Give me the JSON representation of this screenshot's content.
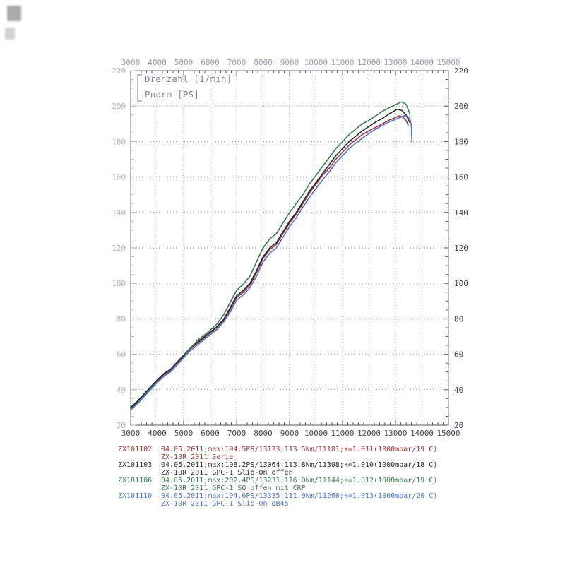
{
  "plot": {
    "inner_label_line1": "Drehzahl [1/min]",
    "inner_label_line2": "Pnorm [PS]"
  },
  "chart_data": {
    "type": "line",
    "title": "",
    "xlabel": "Drehzahl [1/min]",
    "ylabel": "Pnorm [PS]",
    "xlim": [
      3000,
      15000
    ],
    "ylim": [
      20,
      220
    ],
    "x_ticks": [
      3000,
      4000,
      5000,
      6000,
      7000,
      8000,
      9000,
      10000,
      11000,
      12000,
      13000,
      14000,
      15000
    ],
    "y_ticks": [
      20,
      40,
      60,
      80,
      100,
      120,
      140,
      160,
      180,
      200,
      220
    ],
    "x_minor_step": 200,
    "y_minor_step": 5,
    "grid": true,
    "legend_position": "below",
    "series": [
      {
        "name": "ZX101102",
        "label": "ZX-10R 2011 Serie",
        "color": "#a03434",
        "max": "194.5PS/13123",
        "points": [
          [
            3000,
            29.5
          ],
          [
            3250,
            33
          ],
          [
            3500,
            37
          ],
          [
            3750,
            41
          ],
          [
            4000,
            45
          ],
          [
            4250,
            48.5
          ],
          [
            4500,
            51
          ],
          [
            4750,
            55
          ],
          [
            5000,
            59
          ],
          [
            5250,
            63
          ],
          [
            5500,
            66
          ],
          [
            5750,
            69
          ],
          [
            6000,
            72
          ],
          [
            6250,
            75
          ],
          [
            6500,
            79
          ],
          [
            6750,
            85
          ],
          [
            7000,
            92
          ],
          [
            7250,
            95
          ],
          [
            7500,
            99
          ],
          [
            7750,
            106
          ],
          [
            8000,
            114
          ],
          [
            8250,
            119
          ],
          [
            8500,
            122
          ],
          [
            8750,
            128
          ],
          [
            9000,
            134
          ],
          [
            9250,
            139
          ],
          [
            9500,
            145
          ],
          [
            9750,
            151
          ],
          [
            10000,
            156
          ],
          [
            10250,
            161
          ],
          [
            10500,
            165
          ],
          [
            10750,
            170
          ],
          [
            11000,
            174
          ],
          [
            11250,
            178
          ],
          [
            11500,
            181
          ],
          [
            11750,
            184
          ],
          [
            12000,
            186
          ],
          [
            12250,
            188
          ],
          [
            12500,
            190
          ],
          [
            12750,
            192
          ],
          [
            13000,
            193.5
          ],
          [
            13123,
            194.5
          ],
          [
            13250,
            194
          ],
          [
            13400,
            192
          ],
          [
            13480,
            189
          ]
        ]
      },
      {
        "name": "ZX101103",
        "label": "ZX-10R 2011 GPC-1 Slip-On offen",
        "color": "#26262e",
        "max": "198.2PS/13064",
        "points": [
          [
            3000,
            30
          ],
          [
            3250,
            33.5
          ],
          [
            3500,
            37.5
          ],
          [
            3750,
            41.5
          ],
          [
            4000,
            45.5
          ],
          [
            4250,
            49
          ],
          [
            4500,
            51.5
          ],
          [
            4750,
            55.5
          ],
          [
            5000,
            59.5
          ],
          [
            5250,
            63.5
          ],
          [
            5500,
            66.5
          ],
          [
            5750,
            69.5
          ],
          [
            6000,
            72.5
          ],
          [
            6250,
            75.5
          ],
          [
            6500,
            79.5
          ],
          [
            6750,
            86
          ],
          [
            7000,
            93
          ],
          [
            7250,
            96
          ],
          [
            7500,
            100
          ],
          [
            7750,
            107
          ],
          [
            8000,
            115
          ],
          [
            8250,
            120
          ],
          [
            8500,
            123
          ],
          [
            8750,
            129
          ],
          [
            9000,
            135
          ],
          [
            9250,
            140
          ],
          [
            9500,
            146
          ],
          [
            9750,
            152
          ],
          [
            10000,
            157
          ],
          [
            10250,
            162
          ],
          [
            10500,
            167
          ],
          [
            10750,
            172
          ],
          [
            11000,
            176
          ],
          [
            11250,
            180
          ],
          [
            11500,
            183
          ],
          [
            11750,
            186
          ],
          [
            12000,
            188.5
          ],
          [
            12250,
            191
          ],
          [
            12500,
            193
          ],
          [
            12750,
            195.5
          ],
          [
            13064,
            198.2
          ],
          [
            13250,
            197.5
          ],
          [
            13400,
            195
          ],
          [
            13530,
            191
          ]
        ]
      },
      {
        "name": "ZX101106",
        "label": "ZX-10R 2011 GPC-1 SO offen mit CRP",
        "color": "#3c7a52",
        "max": "202.4PS/13231",
        "points": [
          [
            3000,
            29
          ],
          [
            3250,
            32.5
          ],
          [
            3500,
            36.5
          ],
          [
            3750,
            40.5
          ],
          [
            4000,
            44.5
          ],
          [
            4250,
            47.5
          ],
          [
            4500,
            50
          ],
          [
            4750,
            54
          ],
          [
            5000,
            58.5
          ],
          [
            5250,
            63.5
          ],
          [
            5500,
            67.5
          ],
          [
            5750,
            70.5
          ],
          [
            6000,
            73.5
          ],
          [
            6250,
            77
          ],
          [
            6500,
            82
          ],
          [
            6750,
            89
          ],
          [
            7000,
            96
          ],
          [
            7250,
            99.5
          ],
          [
            7500,
            104
          ],
          [
            7750,
            112
          ],
          [
            8000,
            120
          ],
          [
            8250,
            125
          ],
          [
            8500,
            128
          ],
          [
            8750,
            134
          ],
          [
            9000,
            140
          ],
          [
            9250,
            145
          ],
          [
            9500,
            150
          ],
          [
            9750,
            156
          ],
          [
            10000,
            161
          ],
          [
            10250,
            166
          ],
          [
            10500,
            171
          ],
          [
            10750,
            176
          ],
          [
            11000,
            180
          ],
          [
            11250,
            184
          ],
          [
            11500,
            187
          ],
          [
            11750,
            190
          ],
          [
            12000,
            192
          ],
          [
            12250,
            194.5
          ],
          [
            12500,
            197
          ],
          [
            12750,
            199
          ],
          [
            13000,
            200.8
          ],
          [
            13231,
            202.4
          ],
          [
            13400,
            201
          ],
          [
            13550,
            195.5
          ]
        ]
      },
      {
        "name": "ZX101110",
        "label": "ZX-10R 2011 GPC-1 Slip-On dB45",
        "color": "#4a72d8",
        "max": "194.6PS/13335",
        "points": [
          [
            3000,
            28.5
          ],
          [
            3250,
            32
          ],
          [
            3500,
            36
          ],
          [
            3750,
            40
          ],
          [
            4000,
            44
          ],
          [
            4250,
            47.5
          ],
          [
            4500,
            50.5
          ],
          [
            4750,
            54
          ],
          [
            5000,
            58
          ],
          [
            5250,
            62
          ],
          [
            5500,
            65
          ],
          [
            5750,
            68
          ],
          [
            6000,
            71
          ],
          [
            6250,
            74
          ],
          [
            6500,
            78
          ],
          [
            6750,
            83.5
          ],
          [
            7000,
            90.5
          ],
          [
            7250,
            93.5
          ],
          [
            7500,
            97.5
          ],
          [
            7750,
            104
          ],
          [
            8000,
            112
          ],
          [
            8250,
            117
          ],
          [
            8500,
            120
          ],
          [
            8750,
            126
          ],
          [
            9000,
            132
          ],
          [
            9250,
            137
          ],
          [
            9500,
            143
          ],
          [
            9750,
            148.5
          ],
          [
            10000,
            153.5
          ],
          [
            10250,
            158.5
          ],
          [
            10500,
            163
          ],
          [
            10750,
            168
          ],
          [
            11000,
            172
          ],
          [
            11250,
            176
          ],
          [
            11500,
            179
          ],
          [
            11750,
            182
          ],
          [
            12000,
            184.5
          ],
          [
            12250,
            187
          ],
          [
            12500,
            189
          ],
          [
            12750,
            191
          ],
          [
            13000,
            192.5
          ],
          [
            13335,
            194.6
          ],
          [
            13450,
            194.2
          ],
          [
            13550,
            192.5
          ],
          [
            13600,
            189
          ],
          [
            13620,
            179.5
          ]
        ]
      }
    ]
  },
  "legend": {
    "rows": [
      {
        "id": "ZX101102",
        "detail": "04.05.2011;max:194.5PS/13123;113.5Nm/11181;k=1.011(1000mbar/19 C)",
        "name": "ZX-10R 2011 Serie",
        "color": "#a03434"
      },
      {
        "id": "ZX101103",
        "detail": "04.05.2011;max:198.2PS/13064;113.8Nm/11308;k=1.010(1000mbar/18 C)",
        "name": "ZX-10R 2011 GPC-1 Slip-On offen",
        "color": "#2a2a30"
      },
      {
        "id": "ZX101106",
        "detail": "04.05.2011;max:202.4PS/13231;116.0Nm/11144;k=1.012(1000mbar/19 C)",
        "name": "ZX-10R 2011 GPC-1 SO offen mit CRP",
        "color": "#3c7a52"
      },
      {
        "id": "ZX101110",
        "detail": "04.05.2011;max:194.6PS/13335;111.9Nm/11260;k=1.013(1000mbar/20 C)",
        "name": "ZX-10R 2011 GPC-1 Slip-On dB45",
        "color": "#4a72d8"
      }
    ]
  }
}
